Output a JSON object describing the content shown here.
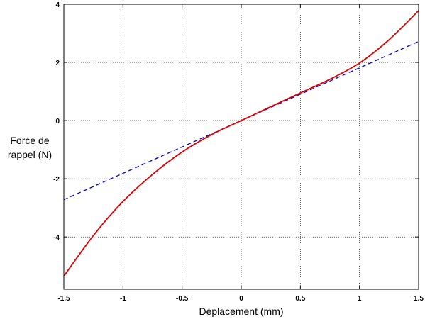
{
  "chart_data": {
    "type": "line",
    "title": "",
    "xlabel": "Déplacement (mm)",
    "ylabel_lines": [
      "Force de",
      "rappel (N)"
    ],
    "xlim": [
      -1.5,
      1.5
    ],
    "ylim": [
      -5.8,
      4
    ],
    "grid": true,
    "x_ticks": [
      -1.5,
      -1,
      -0.5,
      0,
      0.5,
      1,
      1.5
    ],
    "x_tick_labels": [
      "-1.5",
      "-1",
      "-0.5",
      "0",
      "0.5",
      "1",
      "1.5"
    ],
    "y_ticks": [
      -4,
      -2,
      0,
      2,
      4
    ],
    "y_tick_labels": [
      "-4",
      "-2",
      "0",
      "2",
      "4"
    ],
    "series": [
      {
        "color": "#e00000",
        "dash": "solid",
        "x": [
          -1.5,
          -1.25,
          -1.0,
          -0.75,
          -0.5,
          -0.25,
          0,
          0.25,
          0.5,
          0.75,
          1.0,
          1.25,
          1.5
        ],
        "y": [
          -5.35,
          -3.95,
          -2.78,
          -1.85,
          -1.08,
          -0.48,
          0,
          0.48,
          0.95,
          1.42,
          1.98,
          2.78,
          3.78
        ]
      },
      {
        "color": "#0000d0",
        "dash": "dashed",
        "x": [
          -1.5,
          1.5
        ],
        "y": [
          -2.72,
          2.72
        ]
      }
    ]
  }
}
